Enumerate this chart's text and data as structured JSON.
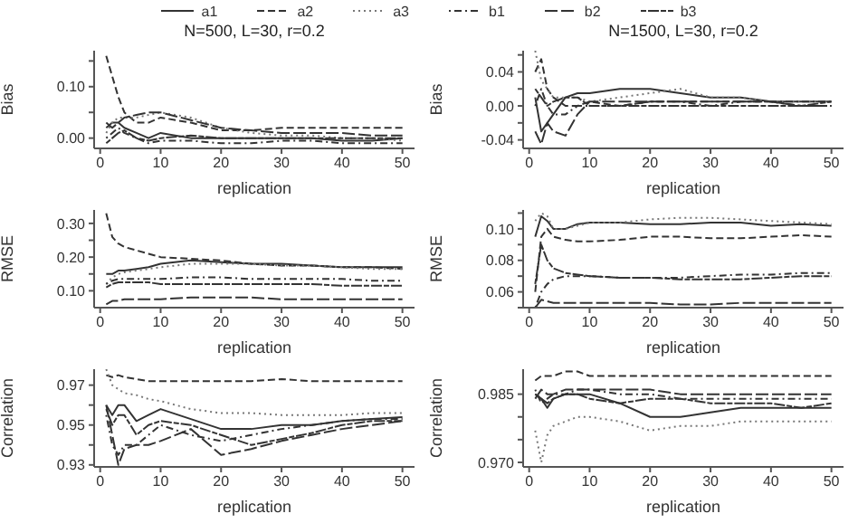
{
  "chart_data": [
    {
      "type": "line",
      "title": "N=500, L=30, r=0.2",
      "xlabel": "replication",
      "ylabel": "Bias",
      "legend": "top",
      "marker": "none",
      "x": [
        1,
        2,
        3,
        4,
        6,
        8,
        10,
        15,
        20,
        25,
        30,
        35,
        40,
        45,
        50
      ],
      "xlim": [
        -1,
        52
      ],
      "xticks": [
        0,
        10,
        20,
        30,
        40,
        50
      ],
      "ylim": [
        -0.02,
        0.17
      ],
      "yticks": [
        {
          "value": 0,
          "label": "0.00"
        },
        {
          "value": 0.05,
          "label": null
        },
        {
          "value": 0.1,
          "label": "0.10"
        },
        {
          "value": 0.15,
          "label": null
        }
      ],
      "series": [
        {
          "name": "a1",
          "color": "#333333",
          "line_style": "solid",
          "values": [
            0.02,
            0.03,
            0.03,
            0.02,
            0.01,
            0.0,
            0.01,
            0.0,
            0.0,
            0.0,
            0.0,
            0.0,
            -0.005,
            -0.005,
            0.0
          ]
        },
        {
          "name": "a2",
          "color": "#333333",
          "line_style": "dashed",
          "values": [
            0.16,
            0.12,
            0.08,
            0.05,
            0.03,
            0.03,
            0.04,
            0.03,
            0.015,
            0.015,
            0.02,
            0.02,
            0.02,
            0.02,
            0.02
          ]
        },
        {
          "name": "a3",
          "color": "#777777",
          "line_style": "dotted",
          "values": [
            0.01,
            0.03,
            0.04,
            0.04,
            0.04,
            0.045,
            0.05,
            0.04,
            0.02,
            0.01,
            0.005,
            0.005,
            0.0,
            0.0,
            -0.005
          ]
        },
        {
          "name": "b1",
          "color": "#333333",
          "line_style": "dashdot",
          "values": [
            0.0,
            0.01,
            0.02,
            0.01,
            0.0,
            -0.01,
            -0.005,
            -0.005,
            -0.01,
            -0.01,
            -0.005,
            -0.005,
            -0.01,
            -0.01,
            -0.01
          ]
        },
        {
          "name": "b2",
          "color": "#333333",
          "line_style": "longdash",
          "values": [
            0.03,
            0.02,
            0.03,
            0.04,
            0.045,
            0.05,
            0.05,
            0.035,
            0.02,
            0.015,
            0.01,
            0.01,
            0.01,
            0.005,
            0.005
          ]
        },
        {
          "name": "b3",
          "color": "#333333",
          "line_style": "twodash",
          "values": [
            -0.01,
            0.0,
            0.01,
            0.015,
            0.0,
            -0.005,
            0.0,
            0.005,
            0.0,
            0.0,
            0.0,
            0.0,
            0.0,
            0.0,
            0.0
          ]
        }
      ]
    },
    {
      "type": "line",
      "title": "N=1500, L=30, r=0.2",
      "xlabel": "replication",
      "ylabel": "Bias",
      "marker": "none",
      "x": [
        1,
        2,
        3,
        4,
        6,
        8,
        10,
        15,
        20,
        25,
        30,
        35,
        40,
        45,
        50
      ],
      "xlim": [
        -1,
        52
      ],
      "xticks": [
        0,
        10,
        20,
        30,
        40,
        50
      ],
      "ylim": [
        -0.05,
        0.065
      ],
      "yticks": [
        {
          "value": -0.04,
          "label": "-0.04"
        },
        {
          "value": -0.02,
          "label": null
        },
        {
          "value": 0,
          "label": "0.00"
        },
        {
          "value": 0.02,
          "label": null
        },
        {
          "value": 0.04,
          "label": "0.04"
        },
        {
          "value": 0.06,
          "label": null
        }
      ],
      "series": [
        {
          "color": "#333333",
          "line_style": "solid",
          "values": [
            0.01,
            -0.03,
            -0.02,
            -0.01,
            0.01,
            0.015,
            0.015,
            0.02,
            0.02,
            0.015,
            0.01,
            0.01,
            0.005,
            0.005,
            0.005
          ]
        },
        {
          "color": "#333333",
          "line_style": "dashed",
          "values": [
            0.04,
            0.055,
            0.02,
            0.01,
            0.0,
            0.0,
            0.005,
            0.0,
            0.005,
            0.005,
            0.005,
            0.005,
            0.005,
            0.0,
            0.0
          ]
        },
        {
          "color": "#777777",
          "line_style": "dotted",
          "values": [
            0.065,
            0.03,
            0.02,
            0.01,
            0.01,
            0.01,
            0.005,
            0.01,
            0.015,
            0.02,
            0.01,
            0.01,
            0.005,
            0.005,
            0.005
          ]
        },
        {
          "color": "#333333",
          "line_style": "dashdot",
          "values": [
            0.0,
            0.02,
            0.0,
            -0.01,
            -0.01,
            0.0,
            0.0,
            0.0,
            0.005,
            0.005,
            0.0,
            0.005,
            0.005,
            0.005,
            0.005
          ]
        },
        {
          "color": "#333333",
          "line_style": "longdash",
          "values": [
            -0.03,
            -0.045,
            -0.02,
            -0.03,
            -0.035,
            -0.01,
            0.005,
            0.005,
            0.005,
            0.005,
            0.005,
            0.005,
            0.005,
            0.0,
            0.0
          ]
        },
        {
          "color": "#333333",
          "line_style": "twodash",
          "values": [
            0.02,
            0.01,
            0.0,
            0.005,
            0.01,
            0.01,
            0.0,
            0.0,
            0.0,
            0.0,
            0.0,
            0.0,
            0.0,
            0.0,
            0.005
          ]
        }
      ]
    },
    {
      "type": "line",
      "xlabel": "replication",
      "ylabel": "RMSE",
      "marker": "none",
      "x": [
        1,
        2,
        3,
        4,
        6,
        8,
        10,
        15,
        20,
        25,
        30,
        35,
        40,
        45,
        50
      ],
      "xlim": [
        -1,
        52
      ],
      "xticks": [
        0,
        10,
        20,
        30,
        40,
        50
      ],
      "ylim": [
        0.05,
        0.34
      ],
      "yticks": [
        {
          "value": 0.1,
          "label": "0.10"
        },
        {
          "value": 0.15,
          "label": null
        },
        {
          "value": 0.2,
          "label": "0.20"
        },
        {
          "value": 0.25,
          "label": null
        },
        {
          "value": 0.3,
          "label": "0.30"
        }
      ],
      "series": [
        {
          "color": "#333333",
          "line_style": "solid",
          "values": [
            0.15,
            0.15,
            0.16,
            0.16,
            0.165,
            0.17,
            0.18,
            0.19,
            0.185,
            0.18,
            0.18,
            0.175,
            0.17,
            0.17,
            0.17
          ]
        },
        {
          "color": "#333333",
          "line_style": "dashed",
          "values": [
            0.33,
            0.26,
            0.24,
            0.23,
            0.22,
            0.21,
            0.2,
            0.195,
            0.19,
            0.18,
            0.175,
            0.175,
            0.17,
            0.17,
            0.165
          ]
        },
        {
          "color": "#777777",
          "line_style": "dotted",
          "values": [
            0.12,
            0.14,
            0.15,
            0.155,
            0.16,
            0.165,
            0.17,
            0.18,
            0.18,
            0.18,
            0.175,
            0.175,
            0.17,
            0.165,
            0.165
          ]
        },
        {
          "color": "#333333",
          "line_style": "dashdot",
          "values": [
            0.12,
            0.13,
            0.135,
            0.135,
            0.135,
            0.135,
            0.135,
            0.14,
            0.14,
            0.135,
            0.135,
            0.135,
            0.135,
            0.13,
            0.13
          ]
        },
        {
          "color": "#333333",
          "line_style": "longdash",
          "values": [
            0.06,
            0.07,
            0.07,
            0.075,
            0.075,
            0.075,
            0.075,
            0.08,
            0.08,
            0.08,
            0.075,
            0.075,
            0.075,
            0.075,
            0.075
          ]
        },
        {
          "color": "#333333",
          "line_style": "twodash",
          "values": [
            0.11,
            0.12,
            0.125,
            0.125,
            0.125,
            0.125,
            0.12,
            0.12,
            0.12,
            0.12,
            0.12,
            0.12,
            0.115,
            0.115,
            0.115
          ]
        }
      ]
    },
    {
      "type": "line",
      "xlabel": "replication",
      "ylabel": "RMSE",
      "marker": "none",
      "x": [
        1,
        2,
        3,
        4,
        6,
        8,
        10,
        15,
        20,
        25,
        30,
        35,
        40,
        45,
        50
      ],
      "xlim": [
        -1,
        52
      ],
      "xticks": [
        0,
        10,
        20,
        30,
        40,
        50
      ],
      "ylim": [
        0.05,
        0.112
      ],
      "yticks": [
        {
          "value": 0.05,
          "label": null
        },
        {
          "value": 0.06,
          "label": "0.06"
        },
        {
          "value": 0.07,
          "label": null
        },
        {
          "value": 0.08,
          "label": "0.08"
        },
        {
          "value": 0.09,
          "label": null
        },
        {
          "value": 0.1,
          "label": "0.10"
        },
        {
          "value": 0.11,
          "label": null
        }
      ],
      "series": [
        {
          "color": "#333333",
          "line_style": "solid",
          "values": [
            0.095,
            0.108,
            0.105,
            0.1,
            0.1,
            0.103,
            0.104,
            0.104,
            0.103,
            0.103,
            0.104,
            0.104,
            0.102,
            0.103,
            0.102
          ]
        },
        {
          "color": "#333333",
          "line_style": "dashed",
          "values": [
            0.06,
            0.095,
            0.1,
            0.095,
            0.093,
            0.092,
            0.092,
            0.093,
            0.095,
            0.095,
            0.094,
            0.094,
            0.095,
            0.096,
            0.095
          ]
        },
        {
          "color": "#777777",
          "line_style": "dotted",
          "values": [
            0.105,
            0.11,
            0.108,
            0.1,
            0.1,
            0.102,
            0.104,
            0.104,
            0.106,
            0.107,
            0.107,
            0.106,
            0.105,
            0.104,
            0.103
          ]
        },
        {
          "color": "#333333",
          "line_style": "dashdot",
          "values": [
            0.05,
            0.06,
            0.065,
            0.068,
            0.07,
            0.07,
            0.07,
            0.069,
            0.069,
            0.069,
            0.07,
            0.071,
            0.071,
            0.072,
            0.072
          ]
        },
        {
          "color": "#333333",
          "line_style": "longdash",
          "values": [
            0.05,
            0.055,
            0.054,
            0.053,
            0.053,
            0.053,
            0.053,
            0.053,
            0.053,
            0.052,
            0.052,
            0.053,
            0.053,
            0.053,
            0.053
          ]
        },
        {
          "color": "#333333",
          "line_style": "twodash",
          "values": [
            0.065,
            0.09,
            0.08,
            0.075,
            0.072,
            0.071,
            0.07,
            0.069,
            0.069,
            0.068,
            0.068,
            0.068,
            0.069,
            0.07,
            0.07
          ]
        }
      ]
    },
    {
      "type": "line",
      "xlabel": "replication",
      "ylabel": "Correlation",
      "marker": "none",
      "x": [
        1,
        2,
        3,
        4,
        6,
        8,
        10,
        15,
        20,
        25,
        30,
        35,
        40,
        45,
        50
      ],
      "xlim": [
        -1,
        52
      ],
      "xticks": [
        0,
        10,
        20,
        30,
        40,
        50
      ],
      "ylim": [
        0.929,
        0.978
      ],
      "yticks": [
        {
          "value": 0.93,
          "label": "0.93"
        },
        {
          "value": 0.94,
          "label": null
        },
        {
          "value": 0.95,
          "label": "0.95"
        },
        {
          "value": 0.96,
          "label": null
        },
        {
          "value": 0.97,
          "label": "0.97"
        }
      ],
      "series": [
        {
          "color": "#333333",
          "line_style": "solid",
          "values": [
            0.96,
            0.955,
            0.96,
            0.96,
            0.952,
            0.955,
            0.958,
            0.953,
            0.948,
            0.948,
            0.95,
            0.95,
            0.952,
            0.953,
            0.954
          ]
        },
        {
          "color": "#333333",
          "line_style": "dashed",
          "values": [
            0.975,
            0.974,
            0.975,
            0.974,
            0.973,
            0.972,
            0.972,
            0.972,
            0.972,
            0.972,
            0.973,
            0.972,
            0.972,
            0.972,
            0.972
          ]
        },
        {
          "color": "#777777",
          "line_style": "dotted",
          "values": [
            0.978,
            0.97,
            0.968,
            0.966,
            0.965,
            0.963,
            0.962,
            0.958,
            0.956,
            0.956,
            0.955,
            0.955,
            0.955,
            0.956,
            0.956
          ]
        },
        {
          "color": "#333333",
          "line_style": "dashdot",
          "values": [
            0.955,
            0.94,
            0.935,
            0.94,
            0.94,
            0.945,
            0.95,
            0.945,
            0.942,
            0.945,
            0.948,
            0.95,
            0.952,
            0.953,
            0.953
          ]
        },
        {
          "color": "#333333",
          "line_style": "longdash",
          "values": [
            0.96,
            0.945,
            0.93,
            0.938,
            0.94,
            0.94,
            0.942,
            0.948,
            0.935,
            0.938,
            0.942,
            0.945,
            0.948,
            0.95,
            0.952
          ]
        },
        {
          "color": "#333333",
          "line_style": "twodash",
          "values": [
            0.958,
            0.95,
            0.955,
            0.955,
            0.945,
            0.95,
            0.952,
            0.95,
            0.945,
            0.94,
            0.943,
            0.946,
            0.95,
            0.952,
            0.952
          ]
        }
      ]
    },
    {
      "type": "line",
      "xlabel": "replication",
      "ylabel": "Correlation",
      "marker": "none",
      "x": [
        1,
        2,
        3,
        4,
        6,
        8,
        10,
        15,
        20,
        25,
        30,
        35,
        40,
        45,
        50
      ],
      "xlim": [
        -1,
        52
      ],
      "xticks": [
        0,
        10,
        20,
        30,
        40,
        50
      ],
      "ylim": [
        0.969,
        0.9905
      ],
      "yticks": [
        {
          "value": 0.97,
          "label": "0.970"
        },
        {
          "value": 0.975,
          "label": null
        },
        {
          "value": 0.98,
          "label": null
        },
        {
          "value": 0.985,
          "label": "0.985"
        }
      ],
      "series": [
        {
          "color": "#333333",
          "line_style": "solid",
          "values": [
            0.985,
            0.984,
            0.982,
            0.984,
            0.985,
            0.985,
            0.985,
            0.983,
            0.98,
            0.98,
            0.981,
            0.982,
            0.982,
            0.982,
            0.982
          ]
        },
        {
          "color": "#333333",
          "line_style": "dashed",
          "values": [
            0.988,
            0.989,
            0.989,
            0.989,
            0.99,
            0.99,
            0.989,
            0.989,
            0.989,
            0.989,
            0.989,
            0.989,
            0.989,
            0.989,
            0.989
          ]
        },
        {
          "color": "#777777",
          "line_style": "dotted",
          "values": [
            0.977,
            0.97,
            0.976,
            0.978,
            0.979,
            0.98,
            0.98,
            0.979,
            0.977,
            0.978,
            0.978,
            0.979,
            0.979,
            0.979,
            0.979
          ]
        },
        {
          "color": "#333333",
          "line_style": "dashdot",
          "values": [
            0.986,
            0.983,
            0.984,
            0.985,
            0.985,
            0.986,
            0.986,
            0.985,
            0.985,
            0.984,
            0.984,
            0.984,
            0.984,
            0.984,
            0.984
          ]
        },
        {
          "color": "#333333",
          "line_style": "longdash",
          "values": [
            0.984,
            0.986,
            0.985,
            0.985,
            0.986,
            0.986,
            0.986,
            0.986,
            0.986,
            0.985,
            0.985,
            0.985,
            0.985,
            0.985,
            0.985
          ]
        },
        {
          "color": "#333333",
          "line_style": "twodash",
          "values": [
            0.985,
            0.984,
            0.983,
            0.984,
            0.985,
            0.985,
            0.984,
            0.983,
            0.984,
            0.984,
            0.983,
            0.983,
            0.983,
            0.982,
            0.983
          ]
        }
      ]
    }
  ]
}
